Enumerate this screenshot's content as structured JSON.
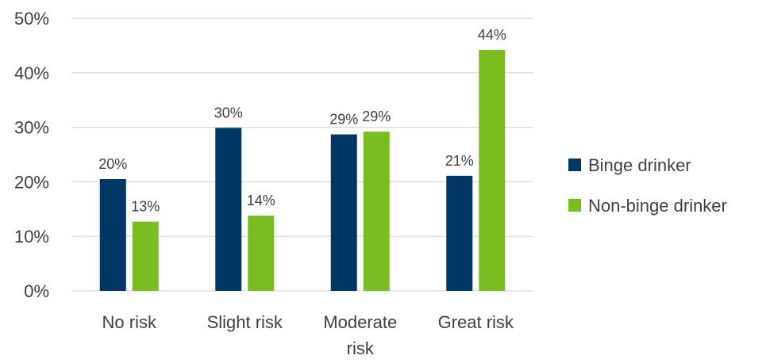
{
  "chart_data": {
    "type": "bar",
    "title": "",
    "xlabel": "",
    "ylabel": "",
    "categories": [
      [
        "No risk"
      ],
      [
        "Slight risk"
      ],
      [
        "Moderate",
        "risk"
      ],
      [
        "Great risk"
      ]
    ],
    "series": [
      {
        "name": "Binge drinker",
        "color": "#003865",
        "values": [
          20.5,
          29.9,
          28.7,
          21.1
        ],
        "labels": [
          "20%",
          "30%",
          "29%",
          "21%"
        ]
      },
      {
        "name": "Non-binge drinker",
        "color": "#78BE21",
        "values": [
          12.7,
          13.8,
          29.2,
          44.2
        ],
        "labels": [
          "13%",
          "14%",
          "29%",
          "44%"
        ]
      }
    ],
    "ylim": [
      0,
      50
    ],
    "yticks": [
      0,
      10,
      20,
      30,
      40,
      50
    ],
    "ytick_labels": [
      "0%",
      "10%",
      "20%",
      "30%",
      "40%",
      "50%"
    ],
    "grid": true,
    "legend_position": "right",
    "gridline_color": "#d9d9d9",
    "text_color": "#404040"
  }
}
